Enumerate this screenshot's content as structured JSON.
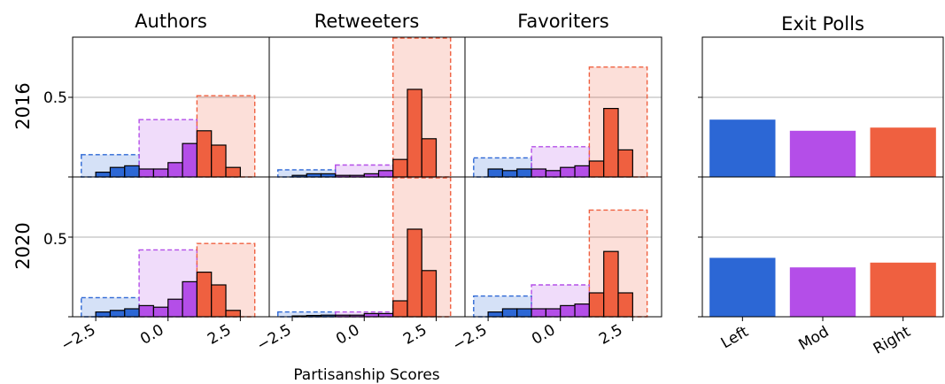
{
  "chart_data": {
    "type": "bar",
    "xlabel": "Partisanship Scores",
    "ylabel": "",
    "column_titles": [
      "Authors",
      "Retweeters",
      "Favoriters"
    ],
    "exit_title": "Exit Polls",
    "row_labels": [
      "2016",
      "2020"
    ],
    "xlim": [
      -3.3,
      3.5
    ],
    "ylim": [
      0,
      0.5
    ],
    "x_ticks": [
      "−2.5",
      "0.0",
      "2.5"
    ],
    "x_tick_values": [
      -2.5,
      0.0,
      2.5
    ],
    "y_tick_label": "0.5",
    "y_tick_value": 0.5,
    "grid": "horizontal at 0.5",
    "colors": {
      "left": "#2c67d5",
      "mod": "#b44ee8",
      "right": "#ef6040",
      "grid": "#b0b0b0"
    },
    "group_ranges": {
      "left": [
        -3.0,
        -1.0
      ],
      "mod": [
        -1.0,
        1.0
      ],
      "right": [
        1.0,
        3.0
      ]
    },
    "bin_edges": [
      -2.5,
      -2.0,
      -1.5,
      -1.0,
      -0.5,
      0.0,
      0.5,
      1.0,
      1.5,
      2.0,
      2.5,
      3.0
    ],
    "panels": [
      {
        "row": "2016",
        "column": "Authors",
        "hist": [
          0.03,
          0.06,
          0.07,
          0.05,
          0.05,
          0.09,
          0.21,
          0.29,
          0.2,
          0.06,
          0.0
        ],
        "group_totals": {
          "left": 0.14,
          "mod": 0.36,
          "right": 0.51
        }
      },
      {
        "row": "2016",
        "column": "Retweeters",
        "hist": [
          0.01,
          0.02,
          0.02,
          0.01,
          0.01,
          0.02,
          0.04,
          0.11,
          0.55,
          0.24,
          0.0
        ],
        "group_totals": {
          "left": 0.045,
          "mod": 0.075,
          "right": 0.88
        }
      },
      {
        "row": "2016",
        "column": "Favoriters",
        "hist": [
          0.05,
          0.04,
          0.05,
          0.05,
          0.04,
          0.06,
          0.07,
          0.1,
          0.43,
          0.17,
          0.0
        ],
        "group_totals": {
          "left": 0.12,
          "mod": 0.19,
          "right": 0.69
        }
      },
      {
        "row": "2020",
        "column": "Authors",
        "hist": [
          0.03,
          0.04,
          0.05,
          0.07,
          0.06,
          0.11,
          0.22,
          0.28,
          0.2,
          0.04,
          0.0
        ],
        "group_totals": {
          "left": 0.12,
          "mod": 0.42,
          "right": 0.46
        }
      },
      {
        "row": "2020",
        "column": "Retweeters",
        "hist": [
          0.005,
          0.008,
          0.01,
          0.01,
          0.01,
          0.02,
          0.02,
          0.1,
          0.55,
          0.29,
          0.0
        ],
        "group_totals": {
          "left": 0.03,
          "mod": 0.03,
          "right": 0.93
        }
      },
      {
        "row": "2020",
        "column": "Favoriters",
        "hist": [
          0.03,
          0.05,
          0.05,
          0.05,
          0.05,
          0.07,
          0.08,
          0.15,
          0.41,
          0.15,
          0.0
        ],
        "group_totals": {
          "left": 0.13,
          "mod": 0.2,
          "right": 0.67
        }
      }
    ],
    "exit_polls": {
      "categories": [
        "Left",
        "Mod",
        "Right"
      ],
      "values_2016": [
        0.36,
        0.29,
        0.31
      ],
      "values_2020": [
        0.37,
        0.31,
        0.34
      ]
    }
  }
}
